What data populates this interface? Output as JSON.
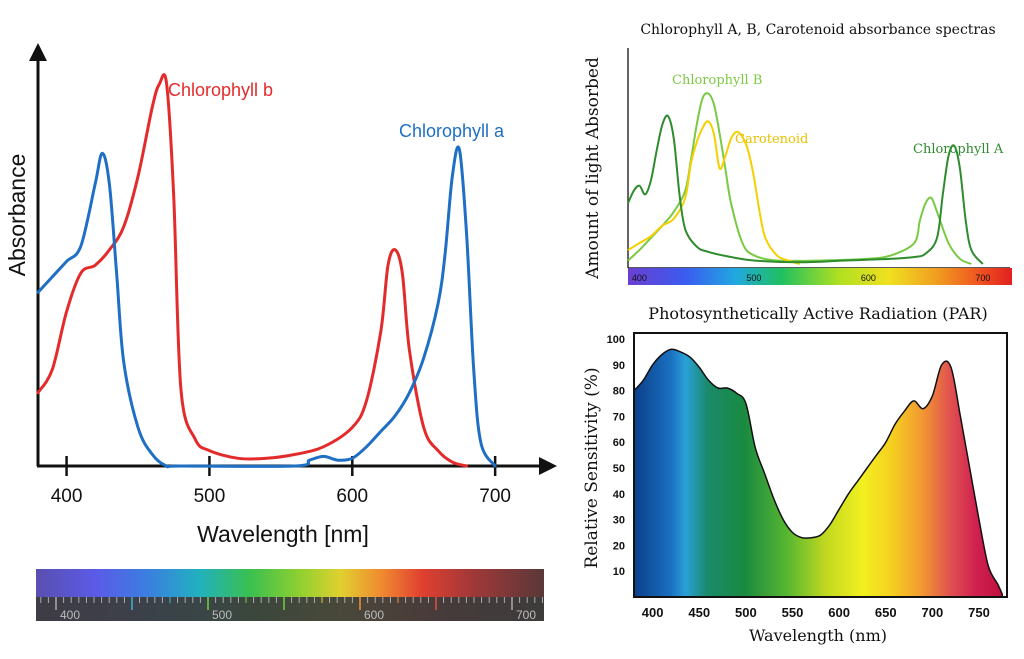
{
  "chart_data": [
    {
      "type": "line",
      "ylabel": "Absorbance",
      "xlabel": "Wavelength [nm]",
      "x_ticks": [
        400,
        500,
        600,
        700
      ],
      "xlim": [
        380,
        730
      ],
      "ylim": [
        0,
        1
      ],
      "grid": false,
      "legend": "inline labels",
      "series": [
        {
          "name": "Chlorophyll b",
          "color": "#e32b2b",
          "x": [
            380,
            390,
            400,
            410,
            420,
            430,
            440,
            450,
            460,
            465,
            470,
            475,
            480,
            490,
            500,
            520,
            540,
            560,
            580,
            600,
            610,
            620,
            625,
            630,
            635,
            640,
            650,
            660,
            670,
            680
          ],
          "y": [
            0.19,
            0.25,
            0.4,
            0.5,
            0.52,
            0.56,
            0.62,
            0.75,
            0.93,
            0.99,
            0.99,
            0.7,
            0.2,
            0.07,
            0.04,
            0.02,
            0.02,
            0.03,
            0.05,
            0.1,
            0.17,
            0.35,
            0.52,
            0.56,
            0.5,
            0.3,
            0.1,
            0.04,
            0.01,
            0.0
          ]
        },
        {
          "name": "Chlorophyll a",
          "color": "#1f6fc4",
          "x": [
            380,
            390,
            400,
            410,
            420,
            425,
            430,
            435,
            440,
            450,
            460,
            470,
            480,
            560,
            570,
            580,
            590,
            600,
            610,
            620,
            630,
            640,
            650,
            660,
            665,
            670,
            675,
            680,
            685,
            690,
            700
          ],
          "y": [
            0.45,
            0.49,
            0.53,
            0.57,
            0.73,
            0.81,
            0.73,
            0.5,
            0.27,
            0.1,
            0.03,
            0.0,
            0.0,
            0.0,
            0.015,
            0.025,
            0.015,
            0.02,
            0.05,
            0.09,
            0.13,
            0.19,
            0.28,
            0.42,
            0.55,
            0.75,
            0.82,
            0.6,
            0.25,
            0.06,
            0.0
          ]
        }
      ],
      "spectrum_ticks": [
        400,
        500,
        600,
        700
      ]
    },
    {
      "type": "line",
      "title": "Chlorophyll A, B, Carotenoid absorbance spectras",
      "ylabel": "Amount of light Absorbed",
      "x_ticks": [
        400,
        500,
        600,
        700
      ],
      "xlim": [
        390,
        715
      ],
      "ylim": [
        0,
        1
      ],
      "series": [
        {
          "name": "Chlorophyll B",
          "color": "#7ac943",
          "x": [
            390,
            400,
            410,
            420,
            430,
            440,
            445,
            450,
            455,
            460,
            465,
            470,
            475,
            480,
            490,
            500,
            520,
            560,
            600,
            620,
            640,
            645,
            650,
            655,
            660,
            670,
            680,
            690
          ],
          "y": [
            0.02,
            0.08,
            0.15,
            0.22,
            0.3,
            0.42,
            0.6,
            0.8,
            0.95,
            0.98,
            0.92,
            0.75,
            0.55,
            0.35,
            0.12,
            0.05,
            0.02,
            0.02,
            0.03,
            0.05,
            0.12,
            0.25,
            0.35,
            0.38,
            0.3,
            0.12,
            0.03,
            0.0
          ]
        },
        {
          "name": "Carotenoid",
          "color": "#f5d000",
          "x": [
            390,
            400,
            410,
            420,
            430,
            440,
            445,
            450,
            455,
            460,
            465,
            470,
            475,
            480,
            485,
            490,
            495,
            500,
            505,
            510,
            520,
            530,
            540
          ],
          "y": [
            0.08,
            0.12,
            0.16,
            0.22,
            0.26,
            0.38,
            0.58,
            0.7,
            0.78,
            0.82,
            0.75,
            0.55,
            0.62,
            0.72,
            0.76,
            0.73,
            0.65,
            0.5,
            0.3,
            0.15,
            0.05,
            0.02,
            0.0
          ]
        },
        {
          "name": "Chlorophyll A",
          "color": "#2e8b2e",
          "x": [
            390,
            395,
            400,
            405,
            410,
            415,
            420,
            425,
            430,
            435,
            440,
            450,
            460,
            480,
            500,
            540,
            580,
            620,
            640,
            650,
            660,
            665,
            670,
            675,
            680,
            685,
            690,
            700
          ],
          "y": [
            0.35,
            0.42,
            0.45,
            0.4,
            0.48,
            0.65,
            0.8,
            0.85,
            0.72,
            0.4,
            0.2,
            0.1,
            0.07,
            0.04,
            0.02,
            0.01,
            0.02,
            0.03,
            0.04,
            0.06,
            0.15,
            0.4,
            0.62,
            0.68,
            0.55,
            0.25,
            0.08,
            0.0
          ]
        }
      ]
    },
    {
      "type": "area",
      "title": "Photosynthetically Active Radiation (PAR)",
      "xlabel": "Wavelength (nm)",
      "ylabel": "Relative Sensitivity (%)",
      "x_ticks": [
        400,
        450,
        500,
        550,
        600,
        650,
        700,
        750
      ],
      "y_ticks": [
        10,
        20,
        30,
        40,
        50,
        60,
        70,
        80,
        90,
        100
      ],
      "xlim": [
        380,
        780
      ],
      "ylim": [
        0,
        100
      ],
      "series": [
        {
          "name": "",
          "x": [
            380,
            390,
            400,
            410,
            420,
            430,
            440,
            450,
            460,
            470,
            480,
            490,
            500,
            510,
            520,
            530,
            540,
            550,
            560,
            570,
            580,
            590,
            600,
            610,
            620,
            630,
            640,
            650,
            660,
            670,
            680,
            690,
            700,
            710,
            720,
            730,
            740,
            750,
            760,
            770,
            775
          ],
          "y": [
            80,
            84,
            90,
            94,
            96,
            95,
            93,
            89,
            84,
            81,
            81,
            79,
            75,
            58,
            48,
            38,
            30,
            25,
            23,
            23,
            24,
            28,
            34,
            40,
            45,
            50,
            55,
            60,
            67,
            72,
            76,
            73,
            78,
            90,
            89,
            70,
            50,
            30,
            12,
            5,
            1
          ]
        }
      ]
    }
  ]
}
